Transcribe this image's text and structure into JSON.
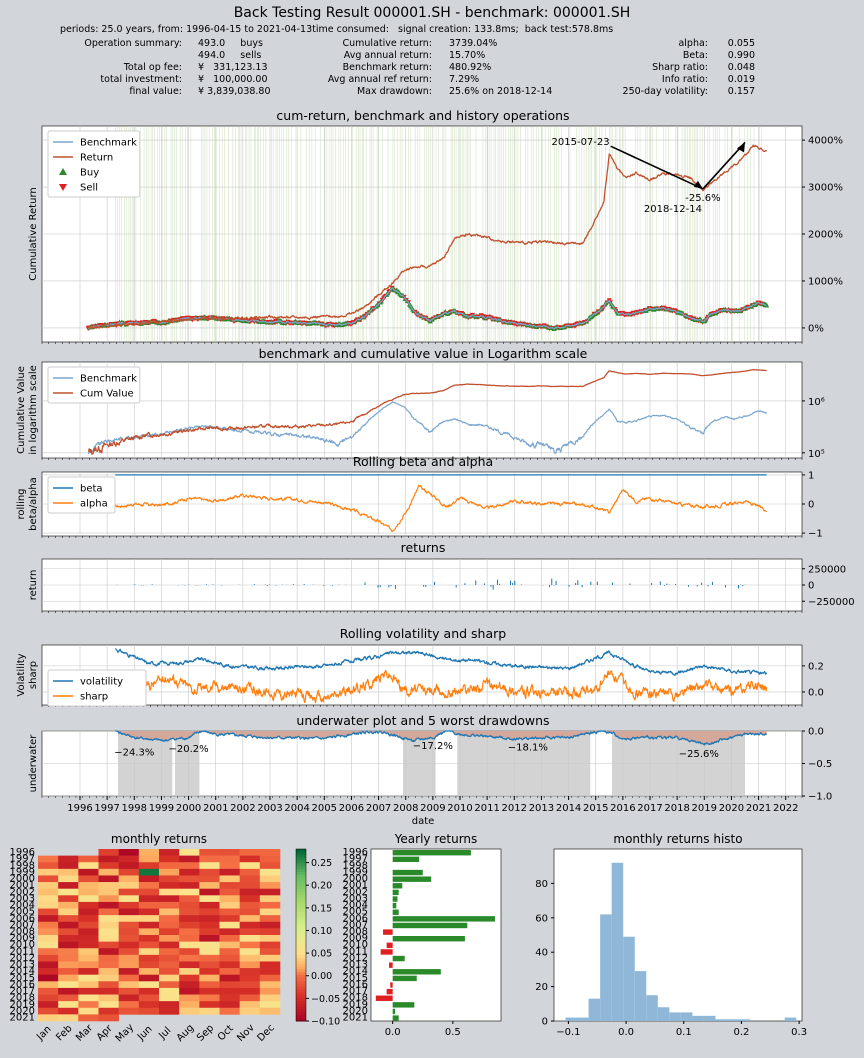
{
  "header": {
    "title": "Back Testing Result 000001.SH - benchmark: 000001.SH",
    "info_line": "periods: 25.0 years, from: 1996-04-15 to 2021-04-13time consumed:   signal creation: 133.8ms;  back test:578.8ms",
    "summary": {
      "col1_labels": [
        "Operation summary:",
        "",
        "Total op fee:",
        "total investment:",
        "final value:"
      ],
      "col1_values": [
        "493.0     buys",
        "494.0     sells",
        "¥   331,123.13",
        "¥   100,000.00",
        "¥ 3,839,038.80"
      ],
      "col2_labels": [
        "Cumulative return:",
        "Avg annual return:",
        "Benchmark return:",
        "Avg annual ref return:",
        "Max drawdown:"
      ],
      "col2_values": [
        "3739.04%",
        "15.70%",
        "480.92%",
        "7.29%",
        "25.6% on 2018-12-14"
      ],
      "col3_labels": [
        "alpha:",
        "Beta:",
        "Sharp ratio:",
        "Info ratio:",
        "250-day volatility:"
      ],
      "col3_values": [
        "0.055",
        "0.990",
        "0.048",
        "0.019",
        "0.157"
      ]
    }
  },
  "colors": {
    "benchmark": "#7aa6cf",
    "return": "#c1502c",
    "buy": "#2a8a2a",
    "sell": "#e02020",
    "beta": "#1f77b4",
    "alpha": "#ff7f0e",
    "drawdown_fill": "#d4a89a",
    "worst_dd": "#c8c8c8",
    "yearly_pos": "#2a8a2a",
    "yearly_neg": "#e02020",
    "histo": "#8fb8d8"
  },
  "chart_data": [
    {
      "type": "line",
      "title": "cum-return, benchmark and history operations",
      "ylabel": "Cumulative Return",
      "ytick_labels": [
        "0%",
        "1000%",
        "2000%",
        "3000%",
        "4000%"
      ],
      "yticks": [
        0,
        1000,
        2000,
        3000,
        4000
      ],
      "ylim": [
        -300,
        4300
      ],
      "legend": [
        "Benchmark",
        "Return",
        "Buy",
        "Sell"
      ],
      "legend_position": "top-left",
      "series": [
        {
          "name": "Return",
          "x": [
            1996.3,
            1997.0,
            1997.8,
            1998.5,
            1999.3,
            2000.0,
            2000.8,
            2001.5,
            2002.3,
            2003.0,
            2003.8,
            2004.5,
            2005.5,
            2006.0,
            2006.5,
            2007.0,
            2007.5,
            2007.9,
            2008.3,
            2008.9,
            2009.4,
            2009.8,
            2010.3,
            2010.8,
            2011.5,
            2012.5,
            2013.0,
            2013.5,
            2014.5,
            2015.0,
            2015.3,
            2015.5,
            2015.8,
            2016.1,
            2016.5,
            2017.0,
            2017.5,
            2018.0,
            2018.5,
            2018.95,
            2019.3,
            2019.8,
            2020.2,
            2020.5,
            2020.8,
            2021.0,
            2021.3
          ],
          "y": [
            0,
            40,
            80,
            120,
            140,
            170,
            200,
            190,
            210,
            230,
            220,
            230,
            250,
            300,
            450,
            700,
            950,
            1200,
            1300,
            1300,
            1500,
            1900,
            2000,
            1950,
            1850,
            1800,
            1850,
            1800,
            1800,
            2300,
            2700,
            3700,
            3400,
            3200,
            3300,
            3150,
            3300,
            3250,
            3200,
            2950,
            3100,
            3350,
            3500,
            3650,
            3900,
            3850,
            3750
          ]
        },
        {
          "name": "Benchmark",
          "x": [
            1996.3,
            1997.0,
            1997.8,
            1998.5,
            1999.3,
            2000.0,
            2000.8,
            2001.5,
            2002.3,
            2003.0,
            2003.8,
            2004.5,
            2005.5,
            2006.0,
            2006.5,
            2007.0,
            2007.5,
            2007.9,
            2008.3,
            2008.9,
            2009.4,
            2009.8,
            2010.3,
            2010.8,
            2011.5,
            2012.5,
            2013.0,
            2013.5,
            2014.5,
            2015.0,
            2015.3,
            2015.5,
            2015.8,
            2016.1,
            2016.5,
            2017.0,
            2017.5,
            2018.0,
            2018.5,
            2018.95,
            2019.3,
            2019.8,
            2020.2,
            2020.5,
            2020.8,
            2021.0,
            2021.3
          ],
          "y": [
            0,
            70,
            100,
            110,
            150,
            200,
            230,
            180,
            150,
            130,
            120,
            100,
            50,
            100,
            250,
            500,
            850,
            700,
            350,
            150,
            300,
            350,
            250,
            250,
            150,
            50,
            50,
            0,
            100,
            300,
            450,
            600,
            300,
            280,
            320,
            400,
            420,
            350,
            200,
            150,
            300,
            400,
            350,
            400,
            480,
            550,
            480
          ]
        }
      ],
      "annotations": [
        {
          "text": "2015-07-23",
          "x": 2015.55,
          "y": 3950
        },
        {
          "text": "-25.6%",
          "x": 2018.95,
          "y": 2950
        },
        {
          "text": "2018-12-14",
          "x": 2018.95,
          "y": 2750
        }
      ]
    },
    {
      "type": "line",
      "title": "benchmark and cumulative value in Logarithm scale",
      "ylabel": "Cumulative Value\nin logarithm scale",
      "yscale": "log",
      "ytick_labels": [
        "10⁵",
        "10⁶"
      ],
      "legend": [
        "Benchmark",
        "Cum Value"
      ],
      "legend_position": "top-left"
    },
    {
      "type": "line",
      "title": "Rolling beta and alpha",
      "ylabel": "rolling\nbeta/alpha",
      "ytick_labels": [
        "−1",
        "0",
        "1"
      ],
      "ylim": [
        -1.1,
        1.1
      ],
      "legend": [
        "beta",
        "alpha"
      ],
      "legend_position": "top-left",
      "series": [
        {
          "name": "beta",
          "x": [
            1997.3,
            2021.3
          ],
          "y": [
            1.0,
            1.0
          ]
        },
        {
          "name": "alpha",
          "x": [
            1997.3,
            1998.0,
            1999.0,
            2000.0,
            2001.0,
            2002.0,
            2003.0,
            2004.0,
            2005.0,
            2006.0,
            2007.0,
            2007.5,
            2008.0,
            2008.5,
            2009.0,
            2009.5,
            2010.0,
            2011.0,
            2012.0,
            2013.0,
            2014.0,
            2015.0,
            2015.5,
            2016.0,
            2016.5,
            2017.0,
            2018.0,
            2019.0,
            2020.0,
            2020.5,
            2021.0,
            2021.3
          ],
          "y": [
            -0.1,
            0.0,
            -0.05,
            0.2,
            0.1,
            0.3,
            0.2,
            0.15,
            0.05,
            -0.2,
            -0.6,
            -0.9,
            -0.3,
            0.6,
            0.3,
            -0.1,
            0.2,
            -0.15,
            0.1,
            0.0,
            0.0,
            -0.1,
            -0.3,
            0.5,
            0.1,
            0.2,
            0.0,
            -0.1,
            0.0,
            0.1,
            -0.1,
            -0.2
          ]
        }
      ]
    },
    {
      "type": "bar",
      "title": "returns",
      "ylabel": "return",
      "ytick_labels": [
        "−250000",
        "0",
        "250000"
      ],
      "ylim": [
        -400000,
        400000
      ]
    },
    {
      "type": "line",
      "title": "Rolling volatility and sharp",
      "ylabel": "Volatility\nsharp",
      "ytick_labels": [
        "0.0",
        "0.2"
      ],
      "legend": [
        "volatility",
        "sharp"
      ],
      "legend_position": "bottom-left"
    },
    {
      "type": "area",
      "title": "underwater plot and 5 worst drawdowns",
      "ylabel": "underwater",
      "xlabel": "date",
      "ytick_labels": [
        "−1.0",
        "−0.5",
        "0.0"
      ],
      "ylim": [
        -1.0,
        0.0
      ],
      "xtick_labels": [
        "1996",
        "1997",
        "1998",
        "1999",
        "2000",
        "2001",
        "2002",
        "2003",
        "2004",
        "2005",
        "2006",
        "2007",
        "2008",
        "2009",
        "2010",
        "2011",
        "2012",
        "2013",
        "2014",
        "2015",
        "2016",
        "2017",
        "2018",
        "2019",
        "2020",
        "2021",
        "2022"
      ],
      "worst_drawdowns": [
        {
          "label": "−24.3%",
          "start": 1997.4,
          "end": 1999.4
        },
        {
          "label": "−20.2%",
          "start": 1999.5,
          "end": 2000.4
        },
        {
          "label": "−17.2%",
          "start": 2007.9,
          "end": 2009.1
        },
        {
          "label": "−18.1%",
          "start": 2009.9,
          "end": 2014.8
        },
        {
          "label": "−25.6%",
          "start": 2015.6,
          "end": 2020.5
        }
      ]
    },
    {
      "type": "heatmap",
      "title": "monthly returns",
      "categories": [
        "Jan",
        "Feb",
        "Mar",
        "Apr",
        "May",
        "Jun",
        "Jul",
        "Aug",
        "Sep",
        "Oct",
        "Nov",
        "Dec"
      ],
      "rows": [
        "1996",
        "1997",
        "1998",
        "1999",
        "2000",
        "2001",
        "2002",
        "2003",
        "2004",
        "2005",
        "2006",
        "2007",
        "2008",
        "2009",
        "2010",
        "2011",
        "2012",
        "2013",
        "2014",
        "2015",
        "2016",
        "2017",
        "2018",
        "2019",
        "2020",
        "2021"
      ],
      "colorbar_ticks": [
        "−0.10",
        "−0.05",
        "0.00",
        "0.05",
        "0.10",
        "0.15",
        "0.20",
        "0.25"
      ],
      "vmin": -0.1,
      "vmax": 0.28
    },
    {
      "type": "bar",
      "title": "Yearly returns",
      "orientation": "horizontal",
      "categories": [
        "1996",
        "1997",
        "1998",
        "1999",
        "2000",
        "2001",
        "2002",
        "2003",
        "2004",
        "2005",
        "2006",
        "2007",
        "2008",
        "2009",
        "2010",
        "2011",
        "2012",
        "2013",
        "2014",
        "2015",
        "2016",
        "2017",
        "2018",
        "2019",
        "2020",
        "2021"
      ],
      "values": [
        0.65,
        0.22,
        0.0,
        0.25,
        0.32,
        0.08,
        0.05,
        0.04,
        0.03,
        0.05,
        0.85,
        0.62,
        -0.08,
        0.6,
        -0.05,
        -0.1,
        0.1,
        -0.03,
        0.4,
        0.2,
        -0.02,
        -0.05,
        -0.14,
        0.18,
        0.02,
        0.05
      ],
      "xtick_labels": [
        "0.0",
        "0.5"
      ],
      "xlim": [
        -0.18,
        0.9
      ]
    },
    {
      "type": "bar",
      "title": "monthly returns histo",
      "categories": [
        "-0.10",
        "-0.07",
        "-0.05",
        "-0.03",
        "-0.01",
        "0.01",
        "0.03",
        "0.05",
        "0.07",
        "0.09",
        "0.11",
        "0.13",
        "0.15",
        "0.17",
        "0.19",
        "0.21",
        "0.23",
        "0.25",
        "0.27",
        "0.29"
      ],
      "values": [
        2,
        2,
        13,
        62,
        92,
        49,
        29,
        15,
        8,
        5,
        5,
        3,
        3,
        1,
        1,
        1,
        0,
        0,
        0,
        2
      ],
      "xtick_labels": [
        "−0.1",
        "0.0",
        "0.1",
        "0.2",
        "0.3"
      ],
      "ytick_labels": [
        "0",
        "20",
        "40",
        "60",
        "80"
      ],
      "ylim": [
        0,
        100
      ]
    }
  ]
}
